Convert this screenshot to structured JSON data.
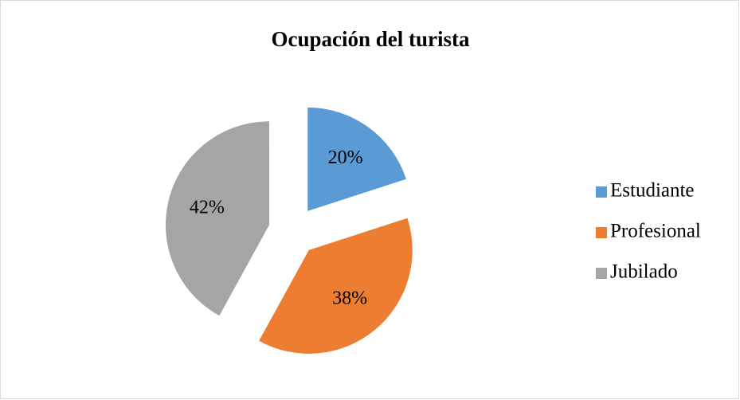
{
  "chart_data": {
    "type": "pie",
    "title": "Ocupación del turista",
    "categories": [
      "Estudiante",
      "Profesional",
      "Jubilado"
    ],
    "values": [
      20,
      38,
      42
    ],
    "value_labels": [
      "20%",
      "38%",
      "42%"
    ],
    "colors": [
      "#5b9bd5",
      "#ed7d31",
      "#a5a5a5"
    ],
    "exploded": true,
    "legend": "right"
  }
}
